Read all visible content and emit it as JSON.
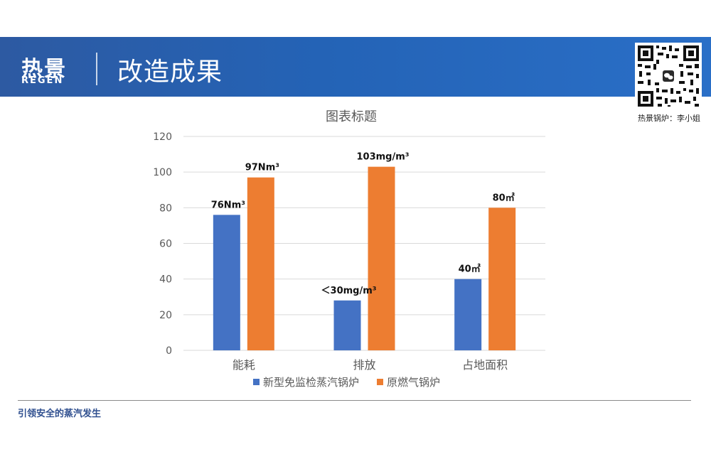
{
  "header": {
    "logo_cn": "热景",
    "logo_en": "REGEN",
    "title": "改造成果",
    "qr_caption": "热景锅炉：李小姐"
  },
  "footer": {
    "slogan": "引领安全的蒸汽发生"
  },
  "colors": {
    "banner": "#2463b6",
    "series1": "#4472c4",
    "series2": "#ed7d31"
  },
  "chart_data": {
    "type": "bar",
    "title": "图表标题",
    "categories": [
      "能耗",
      "排放",
      "占地面积"
    ],
    "series": [
      {
        "name": "新型免监检蒸汽锅炉",
        "values": [
          76,
          28,
          40
        ],
        "labels": [
          "76Nm³",
          "＜30mg/m³",
          "40㎡"
        ]
      },
      {
        "name": "原燃气锅炉",
        "values": [
          97,
          103,
          80
        ],
        "labels": [
          "97Nm³",
          "103mg/m³",
          "80㎡"
        ]
      }
    ],
    "ylim": [
      0,
      120
    ],
    "yticks": [
      0,
      20,
      40,
      60,
      80,
      100,
      120
    ],
    "grid": true,
    "legend": "bottom"
  }
}
